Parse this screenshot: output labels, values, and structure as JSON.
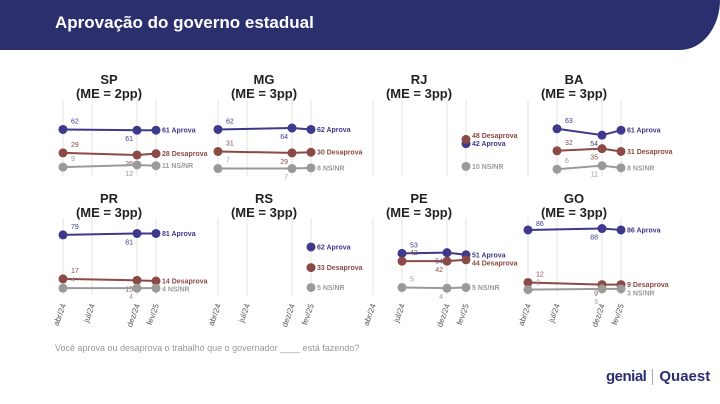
{
  "header": {
    "title": "Aprovação do governo estadual"
  },
  "question": "Você aprova ou desaprova o trabalho que o governador ____ está fazendo?",
  "logos": {
    "genial": "genial",
    "quaest": "Quaest"
  },
  "colors": {
    "aprova": "#3d3a8c",
    "desaprova": "#8b4a45",
    "nsnr": "#9a9a9a",
    "header": "#2c2f6e"
  },
  "chart_data": {
    "type": "line",
    "x_categories": [
      "abr/24",
      "jul/24",
      "dez/24",
      "fev/25"
    ],
    "series_names": {
      "aprova": "Aprova",
      "desaprova": "Desaprova",
      "nsnr": "NS/NR"
    },
    "panels": [
      {
        "state": "SP",
        "me": "(ME = 2pp)",
        "x": [
          "abr/24",
          "dez/24",
          "fev/25"
        ],
        "aprova": [
          62,
          61,
          61
        ],
        "desaprova": [
          29,
          26,
          28
        ],
        "nsnr": [
          9,
          12,
          11
        ]
      },
      {
        "state": "MG",
        "me": "(ME = 3pp)",
        "x": [
          "abr/24",
          "dez/24",
          "fev/25"
        ],
        "aprova": [
          62,
          64,
          62
        ],
        "desaprova": [
          31,
          29,
          30
        ],
        "nsnr": [
          7,
          7,
          8
        ]
      },
      {
        "state": "RJ",
        "me": "(ME = 3pp)",
        "x": [
          "fev/25"
        ],
        "aprova": [
          42
        ],
        "desaprova": [
          48
        ],
        "nsnr": [
          10
        ]
      },
      {
        "state": "BA",
        "me": "(ME = 3pp)",
        "x": [
          "jul/24",
          "dez/24",
          "fev/25"
        ],
        "aprova": [
          63,
          54,
          61
        ],
        "desaprova": [
          32,
          35,
          31
        ],
        "nsnr": [
          6,
          11,
          8
        ]
      },
      {
        "state": "PR",
        "me": "(ME = 3pp)",
        "x": [
          "abr/24",
          "dez/24",
          "fev/25"
        ],
        "aprova": [
          79,
          81,
          81
        ],
        "desaprova": [
          17,
          15,
          14
        ],
        "nsnr": [
          4,
          4,
          4
        ]
      },
      {
        "state": "RS",
        "me": "(ME = 3pp)",
        "x": [
          "fev/25"
        ],
        "aprova": [
          62
        ],
        "desaprova": [
          33
        ],
        "nsnr": [
          5
        ]
      },
      {
        "state": "PE",
        "me": "(ME = 3pp)",
        "x": [
          "jul/24",
          "dez/24",
          "fev/25"
        ],
        "aprova": [
          53,
          54,
          51
        ],
        "desaprova": [
          42,
          42,
          44
        ],
        "nsnr": [
          5,
          4,
          5
        ]
      },
      {
        "state": "GO",
        "me": "(ME = 3pp)",
        "x": [
          "abr/24",
          "dez/24",
          "fev/25"
        ],
        "aprova": [
          86,
          88,
          86
        ],
        "desaprova": [
          12,
          9,
          9
        ],
        "nsnr": [
          2,
          3,
          3
        ]
      }
    ]
  }
}
